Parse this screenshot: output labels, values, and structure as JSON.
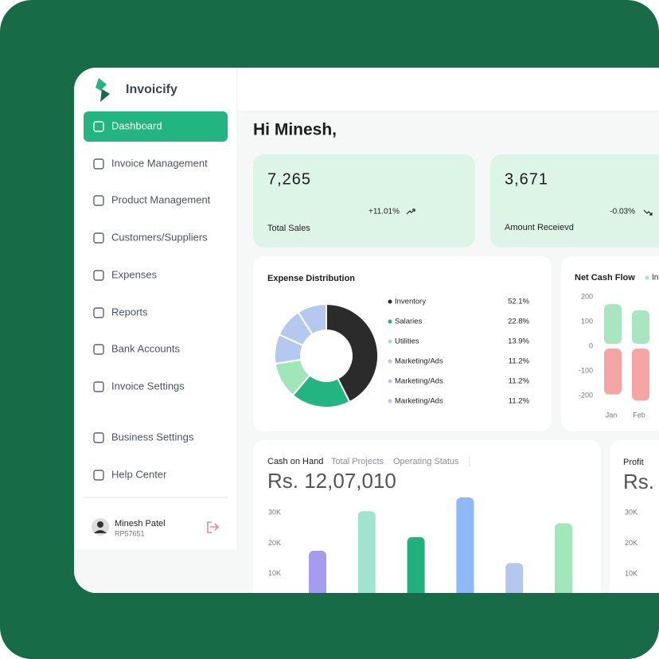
{
  "brand": "Invoicify",
  "nav": [
    "Dashboard",
    "Invoice Management",
    "Product Management",
    "Customers/Suppliers",
    "Expenses",
    "Reports",
    "Bank Accounts",
    "Invoice Settings",
    "Business Settings",
    "Help Center"
  ],
  "user": {
    "name": "Minesh Patel",
    "id": "RP57651"
  },
  "greeting": "Hi Minesh,",
  "stats": [
    {
      "value": "7,265",
      "change": "+11.01%",
      "label": "Total Sales"
    },
    {
      "value": "3,671",
      "change": "-0.03%",
      "label": "Amount Receievd"
    }
  ],
  "chart_data": [
    {
      "type": "donut",
      "title": "Expense Distribution",
      "categories": [
        "Inventory",
        "Salaries",
        "Utilities",
        "Marketing/Ads",
        "Marketing/Ads",
        "Marketing/Ads"
      ],
      "values": [
        52.1,
        22.8,
        13.9,
        11.2,
        11.2,
        11.2
      ],
      "value_labels": [
        "52.1%",
        "22.8%",
        "13.9%",
        "11.2%",
        "11.2%",
        "11.2%"
      ],
      "colors": [
        "#2b2b2b",
        "#22b582",
        "#9fe7b9",
        "#b4c8f0",
        "#b4c8f0",
        "#b4c8f0"
      ]
    },
    {
      "type": "bar",
      "title": "Net Cash Flow",
      "categories": [
        "Jan",
        "Feb"
      ],
      "series": [
        {
          "name": "In",
          "color": "#a8e6c0",
          "values": [
            170,
            145
          ]
        },
        {
          "color": "#f6a5a5",
          "values": [
            -195,
            -220
          ]
        }
      ],
      "ylim": [
        -200,
        200
      ],
      "yticks": [
        200,
        100,
        0,
        -100,
        -200
      ]
    },
    {
      "type": "bar",
      "title": "Cash on Hand",
      "tabs": [
        "Total Projects",
        "Operating Status"
      ],
      "amount": "Rs. 12,07,010",
      "categories": [
        null,
        null,
        null,
        null,
        null,
        null
      ],
      "values": [
        17500,
        30500,
        22000,
        35000,
        13500,
        26500
      ],
      "colors": [
        "#a59cf0",
        "#a0e4cf",
        "#22b07d",
        "#8fb8f7",
        "#b4c8ef",
        "#a0e8ba"
      ],
      "ylim": [
        0,
        35000
      ],
      "yticks": [
        {
          "value": 10000,
          "label": "10K"
        },
        {
          "value": 20000,
          "label": "20K"
        },
        {
          "value": 30000,
          "label": "30K"
        }
      ]
    },
    {
      "type": "line",
      "title": "Profit",
      "amount": "Rs.",
      "ylim": [
        0,
        30000
      ],
      "yticks": [
        {
          "value": 10000,
          "label": "10K"
        },
        {
          "value": 20000,
          "label": "20K"
        },
        {
          "value": 30000,
          "label": "30K"
        }
      ]
    }
  ]
}
